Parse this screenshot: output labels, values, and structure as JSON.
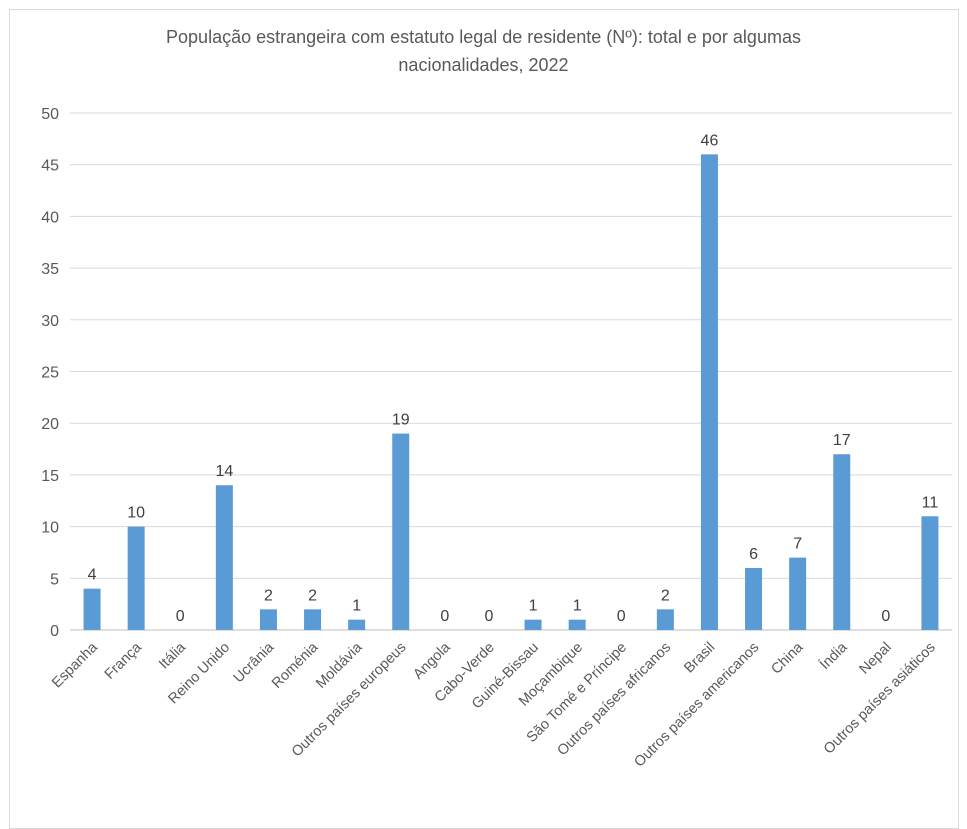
{
  "chart_data": {
    "type": "bar",
    "title_line1": "População estrangeira com estatuto legal de residente (Nº):  total e por algumas",
    "title_line2": "nacionalidades, 2022",
    "categories": [
      "Espanha",
      "França",
      "Itália",
      "Reino Unido",
      "Ucrânia",
      "Roménia",
      "Moldávia",
      "Outros países europeus",
      "Angola",
      "Cabo-Verde",
      "Guiné-Bissau",
      "Moçambique",
      "São Tomé e Príncipe",
      "Outros países africanos",
      "Brasil",
      "Outros países americanos",
      "China",
      "Índia",
      "Nepal",
      "Outros países asiáticos"
    ],
    "values": [
      4,
      10,
      0,
      14,
      2,
      2,
      1,
      19,
      0,
      0,
      1,
      1,
      0,
      2,
      46,
      6,
      7,
      17,
      0,
      11
    ],
    "ylim": [
      0,
      50
    ],
    "yticks": [
      0,
      5,
      10,
      15,
      20,
      25,
      30,
      35,
      40,
      45,
      50
    ],
    "bar_color": "#5b9bd5",
    "grid": true,
    "legend": "none"
  }
}
